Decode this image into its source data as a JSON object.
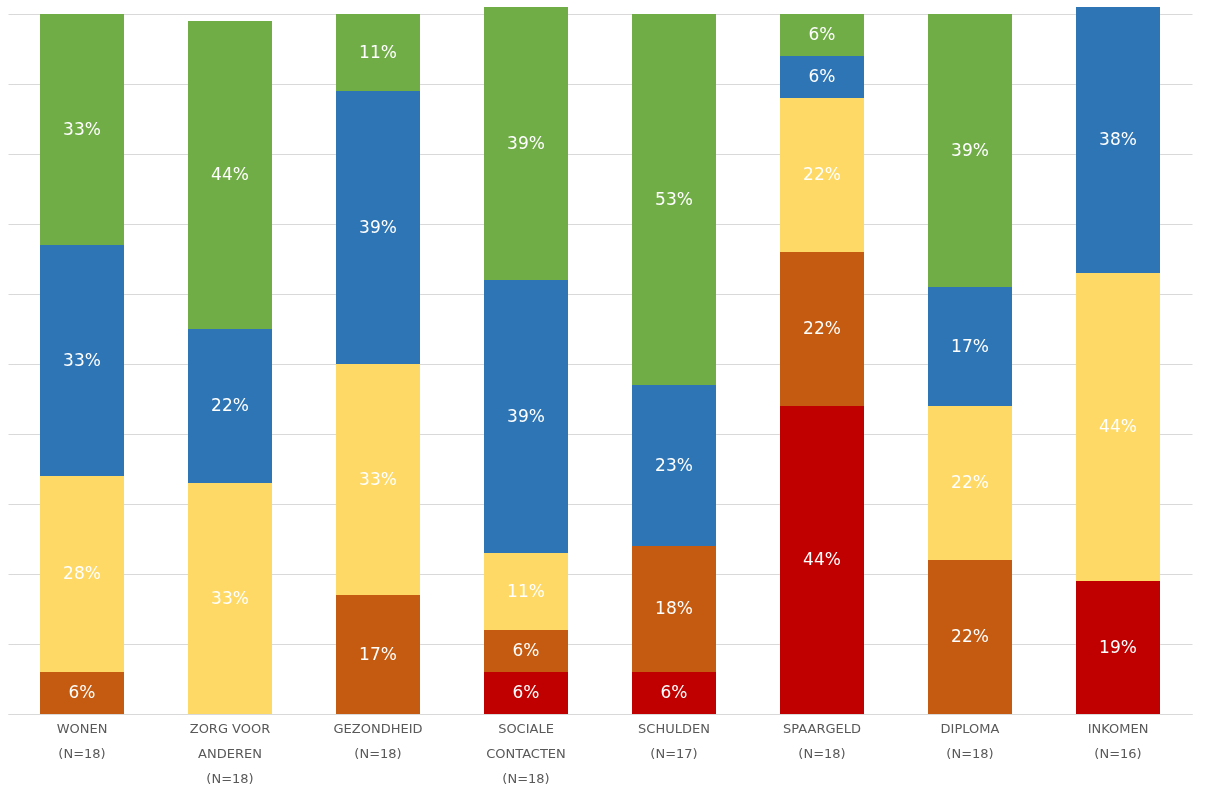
{
  "chart_data": {
    "type": "bar",
    "stacked": true,
    "grid": "y",
    "tick_labels": "x",
    "categories": [
      "WONEN\n(N=18)",
      "ZORG VOOR\nANDEREN\n(N=18)",
      "GEZONDHEID\n(N=18)",
      "SOCIALE\nCONTACTEN\n(N=18)",
      "SCHULDEN\n(N=17)",
      "SPAARGELD\n(N=18)",
      "DIPLOMA\n(N=18)",
      "INKOMEN\n(N=16)"
    ],
    "series": [
      {
        "color": "#c00000",
        "values": [
          null,
          null,
          null,
          6,
          6,
          44,
          null,
          19
        ],
        "value_labels": [
          null,
          null,
          null,
          "6%",
          "6%",
          "44%",
          null,
          "19%"
        ]
      },
      {
        "color": "#c55a11",
        "values": [
          6,
          null,
          17,
          6,
          18,
          22,
          22,
          null
        ],
        "value_labels": [
          "6%",
          null,
          "17%",
          "6%",
          "18%",
          "22%",
          "22%",
          null
        ]
      },
      {
        "color": "#ffd966",
        "values": [
          28,
          33,
          33,
          11,
          null,
          22,
          22,
          44
        ],
        "value_labels": [
          "28%",
          "33%",
          "33%",
          "11%",
          null,
          "22%",
          "22%",
          "44%"
        ]
      },
      {
        "color": "#2e75b6",
        "values": [
          33,
          22,
          39,
          39,
          23,
          6,
          17,
          38
        ],
        "value_labels": [
          "33%",
          "22%",
          "39%",
          "39%",
          "23%",
          "6%",
          "17%",
          "38%"
        ]
      },
      {
        "color": "#70ad47",
        "values": [
          33,
          44,
          11,
          39,
          53,
          6,
          39,
          null
        ],
        "value_labels": [
          "33%",
          "44%",
          "11%",
          "39%",
          "53%",
          "6%",
          "39%",
          null
        ]
      }
    ]
  }
}
